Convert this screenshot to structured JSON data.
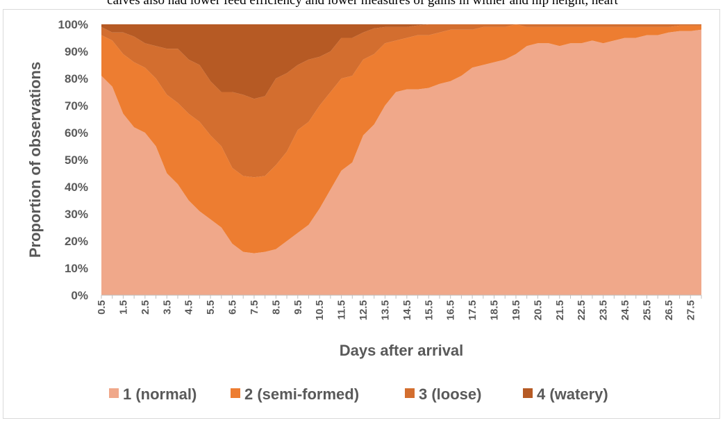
{
  "page_text": {
    "clipped_line": "calves also had lower feed efficiency and lower measures of gains in wither and hip height, heart"
  },
  "chart_data": {
    "type": "area",
    "stacked": true,
    "percent": true,
    "xlabel": "Days after arrival",
    "ylabel": "Proportion of observations",
    "ylim": [
      0,
      100
    ],
    "y_ticks": [
      "0%",
      "10%",
      "20%",
      "30%",
      "40%",
      "50%",
      "60%",
      "70%",
      "80%",
      "90%",
      "100%"
    ],
    "x_tick_labels": [
      "0.5",
      "1.5",
      "2.5",
      "3.5",
      "4.5",
      "5.5",
      "6.5",
      "7.5",
      "8.5",
      "9.5",
      "10.5",
      "11.5",
      "12.5",
      "13.5",
      "14.5",
      "15.5",
      "16.5",
      "17.5",
      "18.5",
      "19.5",
      "20.5",
      "21.5",
      "22.5",
      "23.5",
      "24.5",
      "25.5",
      "26.5",
      "27.5"
    ],
    "x": [
      0.5,
      1,
      1.5,
      2,
      2.5,
      3,
      3.5,
      4,
      4.5,
      5,
      5.5,
      6,
      6.5,
      7,
      7.5,
      8,
      8.5,
      9,
      9.5,
      10,
      10.5,
      11,
      11.5,
      12,
      12.5,
      13,
      13.5,
      14,
      14.5,
      15,
      15.5,
      16,
      16.5,
      17,
      17.5,
      18,
      18.5,
      19,
      19.5,
      20,
      20.5,
      21,
      21.5,
      22,
      22.5,
      23,
      23.5,
      24,
      24.5,
      25,
      25.5,
      26,
      26.5,
      27,
      27.5,
      28
    ],
    "legend_position": "bottom",
    "grid": false,
    "series": [
      {
        "name": "1 (normal)",
        "color": "#F0A88A",
        "values": [
          81,
          77,
          67,
          62,
          60,
          55,
          45,
          41,
          35,
          31,
          28,
          25,
          19,
          16,
          15.5,
          16,
          17,
          20,
          23,
          26,
          32,
          39,
          46,
          49,
          59,
          63,
          70,
          75,
          76,
          76,
          76.5,
          78,
          79,
          81,
          84,
          85,
          86,
          87,
          89,
          92,
          93,
          93,
          92,
          93,
          93,
          94,
          93,
          94,
          95,
          95,
          96,
          96,
          97,
          97.5,
          97.5,
          98
        ]
      },
      {
        "name": "2 (semi-formed)",
        "color": "#ED7D31",
        "values": [
          15,
          17,
          22,
          24,
          24,
          25,
          29,
          30,
          32,
          33,
          31,
          30,
          28,
          28,
          28,
          28,
          31,
          33,
          38,
          38,
          38,
          36,
          34,
          32,
          28,
          26,
          23,
          19,
          19,
          20,
          19.5,
          19,
          19,
          17,
          14,
          14,
          13,
          12,
          11,
          7,
          6,
          6,
          7,
          6,
          6,
          5,
          6,
          5,
          4,
          4,
          3,
          3,
          2,
          2,
          2,
          1.5
        ]
      },
      {
        "name": "3 (loose)",
        "color": "#D36E2F",
        "values": [
          3,
          3,
          8,
          9.5,
          9,
          12,
          17,
          20,
          20,
          21,
          20,
          20,
          28,
          30,
          29,
          29.5,
          32,
          29,
          24,
          23,
          18,
          15,
          15,
          14,
          10,
          9.5,
          6,
          5,
          4,
          3.6,
          4,
          3,
          2,
          2,
          2,
          1,
          1,
          1,
          0,
          1,
          1,
          1,
          1,
          1,
          1,
          1,
          1,
          1,
          1,
          1,
          1,
          1,
          1,
          0.5,
          0.5,
          0.5
        ]
      },
      {
        "name": "4 (watery)",
        "color": "#B65A24",
        "values": [
          1,
          3,
          3,
          4.5,
          7,
          8,
          9,
          9,
          13,
          15,
          21,
          25,
          25,
          26,
          27.5,
          26.5,
          20,
          18,
          15,
          13,
          12,
          10,
          5,
          5,
          3,
          1.5,
          1,
          1,
          1,
          0.4,
          0.5,
          0,
          0,
          0,
          0,
          0,
          0,
          0,
          0,
          0,
          0,
          0,
          0,
          0,
          0,
          0,
          0,
          0,
          0,
          0,
          0,
          0,
          0,
          0,
          0,
          0
        ]
      }
    ]
  }
}
